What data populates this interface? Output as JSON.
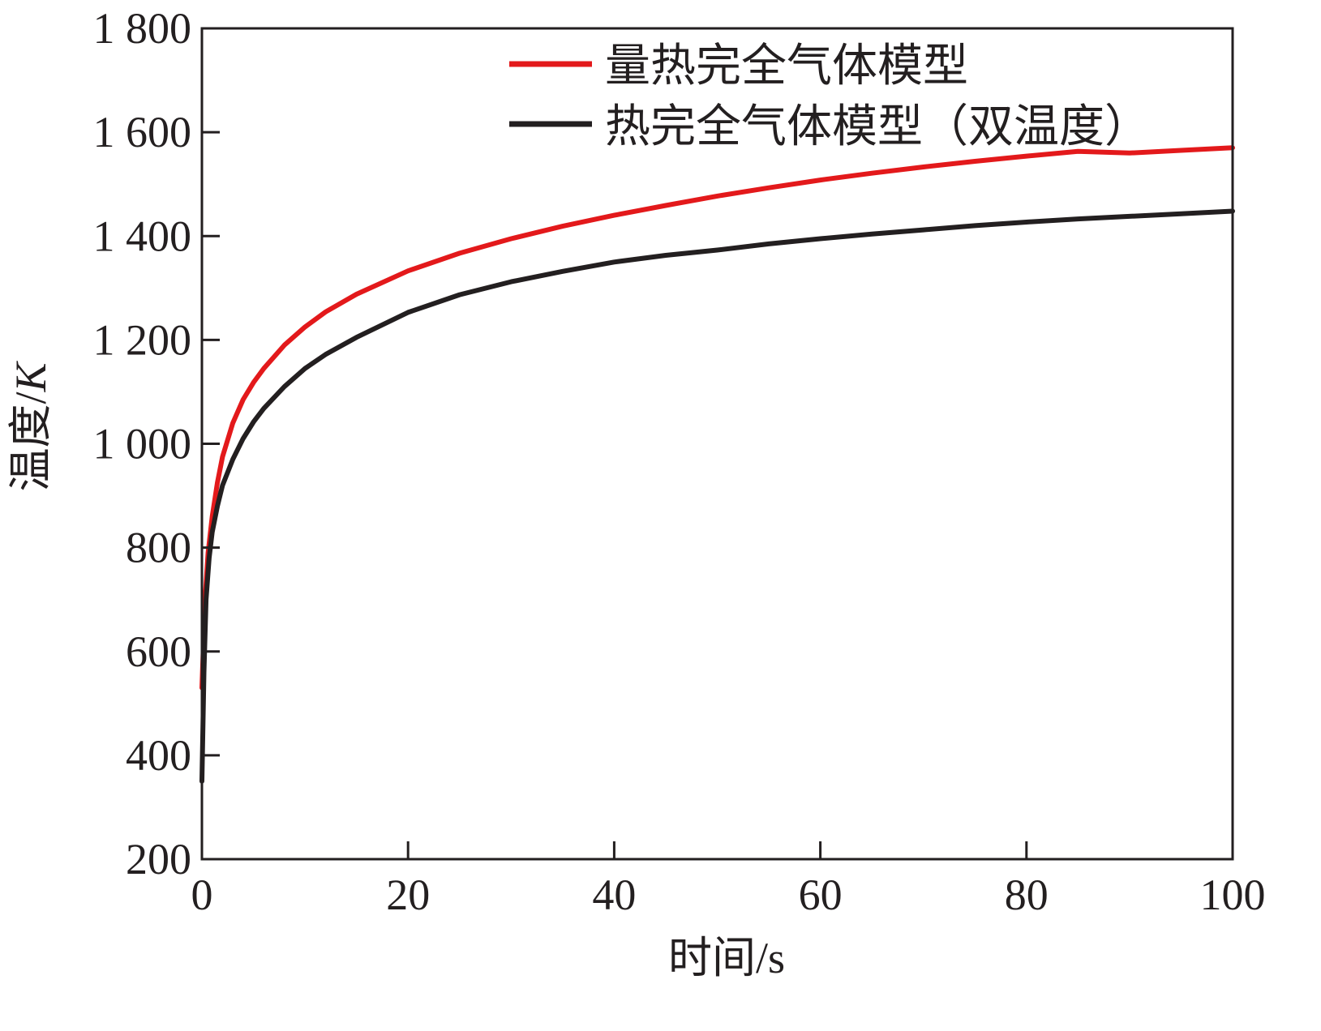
{
  "chart_data": {
    "type": "line",
    "title": "",
    "xlabel": "时间/s",
    "ylabel_prefix": "温度/",
    "ylabel_unit": "K",
    "xlim": [
      0,
      100
    ],
    "ylim": [
      200,
      1800
    ],
    "x_ticks": [
      0,
      20,
      40,
      60,
      80,
      100
    ],
    "x_tick_labels": [
      "0",
      "20",
      "40",
      "60",
      "80",
      "100"
    ],
    "y_ticks": [
      200,
      400,
      600,
      800,
      1000,
      1200,
      1400,
      1600,
      1800
    ],
    "y_tick_labels": [
      "200",
      "400",
      "600",
      "800",
      "1 000",
      "1 200",
      "1 400",
      "1 600",
      "1 800"
    ],
    "grid": false,
    "legend_position": "top-right",
    "series": [
      {
        "name": "量热完全气体模型",
        "color": "#e3191b",
        "x": [
          0,
          0.3,
          0.6,
          1,
          1.5,
          2,
          3,
          4,
          5,
          6,
          8,
          10,
          12,
          15,
          20,
          25,
          30,
          35,
          40,
          45,
          50,
          55,
          60,
          65,
          70,
          75,
          80,
          85,
          90,
          95,
          100
        ],
        "y": [
          530,
          700,
          790,
          860,
          925,
          975,
          1040,
          1085,
          1118,
          1145,
          1190,
          1225,
          1254,
          1288,
          1333,
          1367,
          1395,
          1419,
          1440,
          1459,
          1477,
          1493,
          1508,
          1521,
          1533,
          1544,
          1554,
          1563,
          1560,
          1565,
          1570
        ]
      },
      {
        "name": "热完全气体模型（双温度）",
        "color": "#231f20",
        "x": [
          0,
          0.2,
          0.4,
          0.7,
          1,
          1.5,
          2,
          3,
          4,
          5,
          6,
          8,
          10,
          12,
          15,
          20,
          25,
          30,
          35,
          40,
          45,
          50,
          55,
          60,
          65,
          70,
          75,
          80,
          85,
          90,
          95,
          100
        ],
        "y": [
          350,
          560,
          700,
          780,
          830,
          880,
          920,
          970,
          1010,
          1042,
          1068,
          1110,
          1145,
          1172,
          1205,
          1253,
          1287,
          1312,
          1332,
          1350,
          1363,
          1373,
          1385,
          1395,
          1404,
          1412,
          1420,
          1427,
          1433,
          1438,
          1443,
          1448
        ]
      }
    ]
  }
}
